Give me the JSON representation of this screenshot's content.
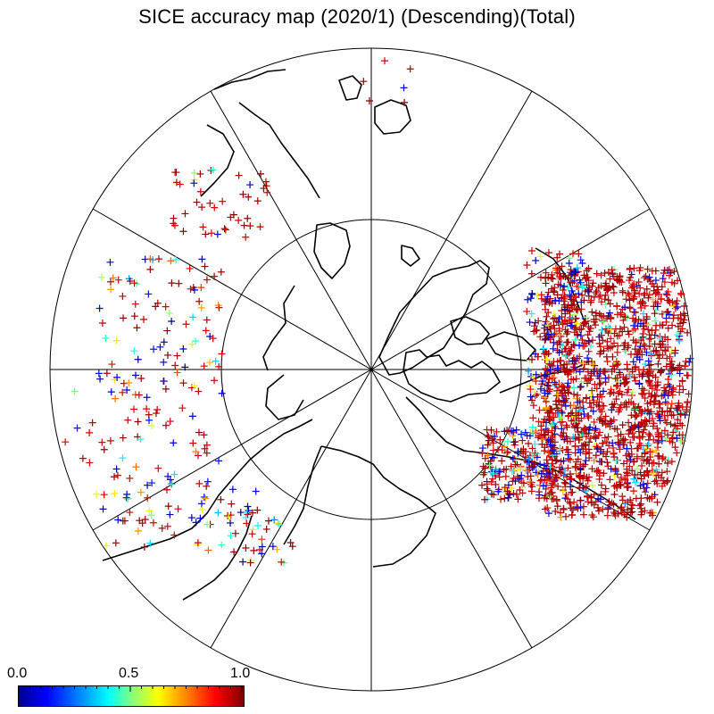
{
  "title": "SICE accuracy map (2020/1) (Descending)(Total)",
  "colorbar": {
    "labels": [
      "0.0",
      "0.5",
      "1.0"
    ],
    "min": 0.0,
    "max": 1.0,
    "colormap": "jet",
    "colors": [
      "#00008f",
      "#0000ff",
      "#00ffff",
      "#ffff00",
      "#ff0000",
      "#800000"
    ]
  },
  "map": {
    "projection": "north polar stereographic",
    "graticule": {
      "meridian_step_deg": 30,
      "latitude_circles": 2
    },
    "marker_symbol": "+",
    "marker_colors": {
      "low": "#00008b",
      "mid": "#00ffff",
      "high": "#8b0000"
    }
  }
}
